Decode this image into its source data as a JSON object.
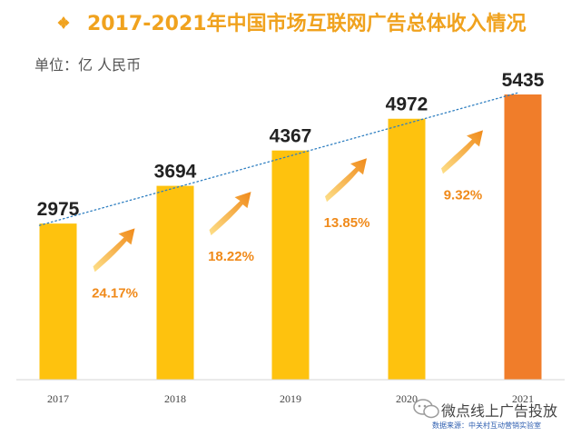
{
  "title": "2017-2021年中国市场互联网广告总体收入情况",
  "unit_label": "单位：亿 人民币",
  "watermark": "微点线上广告投放",
  "source_note": "数据来源：中关村互动营销实验室",
  "colors": {
    "title": "#f0a21e",
    "bar": "#fec20e",
    "bar_highlight": "#f07d2a",
    "growth_text": "#f08a1a",
    "value_text": "#222222",
    "trend_line": "#2f7fc1"
  },
  "chart_data": {
    "type": "bar",
    "categories": [
      "2017",
      "2018",
      "2019",
      "2020",
      "2021"
    ],
    "values": [
      2975,
      3694,
      4367,
      4972,
      5435
    ],
    "value_labels": [
      "2975",
      "3694",
      "4367",
      "4972",
      "5435"
    ],
    "growth_labels": [
      "24.17%",
      "18.22%",
      "13.85%",
      "9.32%"
    ],
    "highlight_index": 4,
    "ylim": [
      0,
      5435
    ],
    "grid": false,
    "trend_line": "dotted linear trend"
  }
}
